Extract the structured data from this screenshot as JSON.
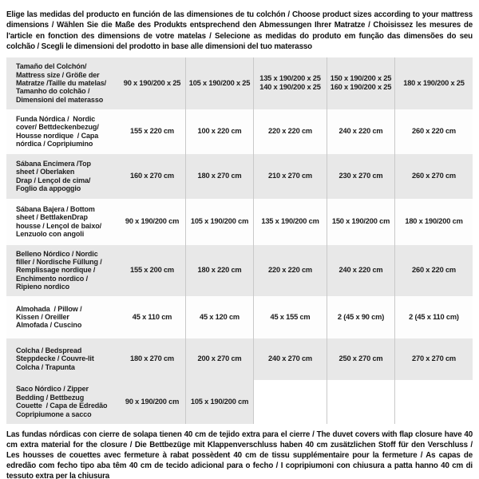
{
  "colors": {
    "row_gray": "#e8e8e8",
    "row_light": "#fdfdfd",
    "divider": "#c9c9c9",
    "text": "#1c1c1c"
  },
  "intro_note": "Elige las medidas del producto en función de las dimensiones de tu colchón / Choose product sizes according to your mattress dimensions / Wählen Sie die Maße des Produkts entsprechend den Abmessungen Ihrer Matratze / Choisissez les mesures de l'article en fonction des dimensions de votre matelas / Selecione as medidas do produto em função das dimensões do seu colchão / Scegli le dimensioni del prodotto in base alle dimensioni del tuo materasso",
  "footer_note": "Las fundas nórdicas con cierre de solapa tienen 40 cm de tejido extra para el cierre  / The duvet covers with flap closure have 40 cm extra material for the closure / Die Bettbezüge mit Klappenverschluss haben 40 cm zusätzlichen Stoff für den Verschluss / Les housses de couettes avec fermeture à rabat possèdent 40 cm de tissu supplémentaire pour la fermeture / As capas de edredão com fecho tipo aba têm 40 cm de tecido adicional para o fecho / I copripiumoni con chiusura a patta hanno 40 cm di tessuto extra per la chiusura",
  "table": {
    "rows": [
      {
        "label": "Tamaño del Colchón/\nMattress size / Größe der\nMatratze /Taille du matelas/\nTamanho do colchão /\nDimensioni del materasso",
        "values": [
          "90 x 190/200 x 25",
          "105 x 190/200 x 25",
          "135 x 190/200 x 25\n140 x 190/200 x 25",
          "150 x 190/200 x 25\n160 x 190/200 x 25",
          "180 x 190/200 x 25"
        ]
      },
      {
        "label": "Funda Nórdica /  Nordic\ncover/ Bettdeckenbezug/\nHousse nordique  / Capa\nnórdica / Copripiumino",
        "values": [
          "155 x 220 cm",
          "100 x 220 cm",
          "220 x 220 cm",
          "240 x 220 cm",
          "260 x 220 cm"
        ]
      },
      {
        "label": "Sábana Encimera /Top\nsheet / Oberlaken\nDrap / Lençol de cima/\nFoglio da appoggio",
        "values": [
          "160 x 270 cm",
          "180 x 270 cm",
          "210 x 270 cm",
          "230 x 270 cm",
          "260 x 270 cm"
        ]
      },
      {
        "label": "Sábana Bajera / Bottom\nsheet / BettlakenDrap\nhousse / Lençol de baixo/\nLenzuolo con angoli",
        "values": [
          "90 x 190/200 cm",
          "105 x 190/200 cm",
          "135 x 190/200 cm",
          "150 x 190/200 cm",
          "180 x 190/200 cm"
        ]
      },
      {
        "label": "Belleno Nórdico / Nordic\nfiller / Nordische Füllung /\nRemplissage nordique /\nEnchimento nordico /\nRipieno nordico",
        "values": [
          "155 x 200 cm",
          "180 x 220 cm",
          "220 x 220 cm",
          "240 x 220 cm",
          "260 x 220 cm"
        ]
      },
      {
        "label": "Almohada  / Pillow /\nKissen / Oreiller\nAlmofada / Cuscino",
        "values": [
          "45 x 110 cm",
          "45 x 120 cm",
          "45 x 155 cm",
          "2 (45 x 90 cm)",
          "2 (45 x 110 cm)"
        ]
      },
      {
        "label": "Colcha / Bedspread\nSteppdecke / Couvre-lit\nColcha / Trapunta",
        "values": [
          "180 x 270 cm",
          "200 x 270 cm",
          "240 x 270 cm",
          "250 x 270 cm",
          "270 x 270 cm"
        ]
      },
      {
        "label": "Saco Nórdico / Zipper\nBedding / Bettbezug\nCouette  / Capa de Edredão\nCopripiumone a sacco",
        "values": [
          "90 x 190/200 cm",
          "105 x 190/200 cm",
          "",
          "",
          ""
        ]
      }
    ]
  }
}
